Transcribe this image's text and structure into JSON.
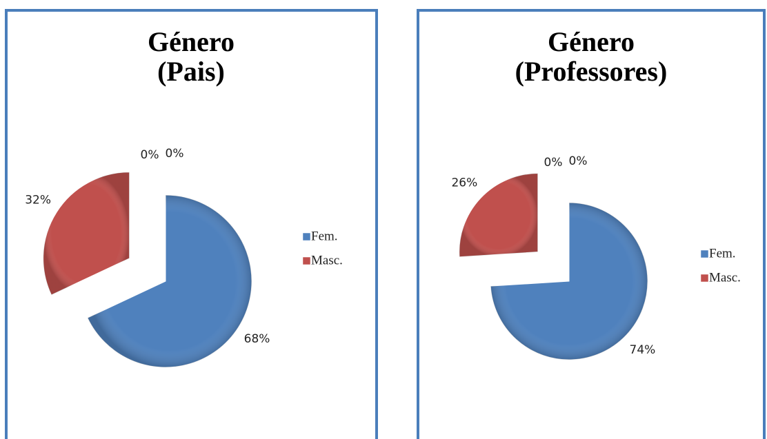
{
  "chart_data": [
    {
      "type": "pie",
      "title": [
        "Género",
        "(Pais)"
      ],
      "categories": [
        "Fem.",
        "Masc.",
        null,
        null
      ],
      "values": [
        68,
        32,
        0,
        0
      ],
      "value_labels": [
        "68%",
        "32%",
        "0%",
        "0%"
      ],
      "colors": [
        "#4f81bd",
        "#c0504d",
        "#9bbb59",
        "#8064a2"
      ],
      "legend": "right"
    },
    {
      "type": "pie",
      "title": [
        "Género",
        "(Professores)"
      ],
      "categories": [
        "Fem.",
        "Masc.",
        null,
        null
      ],
      "values": [
        74,
        26,
        0,
        0
      ],
      "value_labels": [
        "74%",
        "26%",
        "0%",
        "0%"
      ],
      "colors": [
        "#4f81bd",
        "#c0504d",
        "#9bbb59",
        "#8064a2"
      ],
      "legend": "right"
    }
  ]
}
